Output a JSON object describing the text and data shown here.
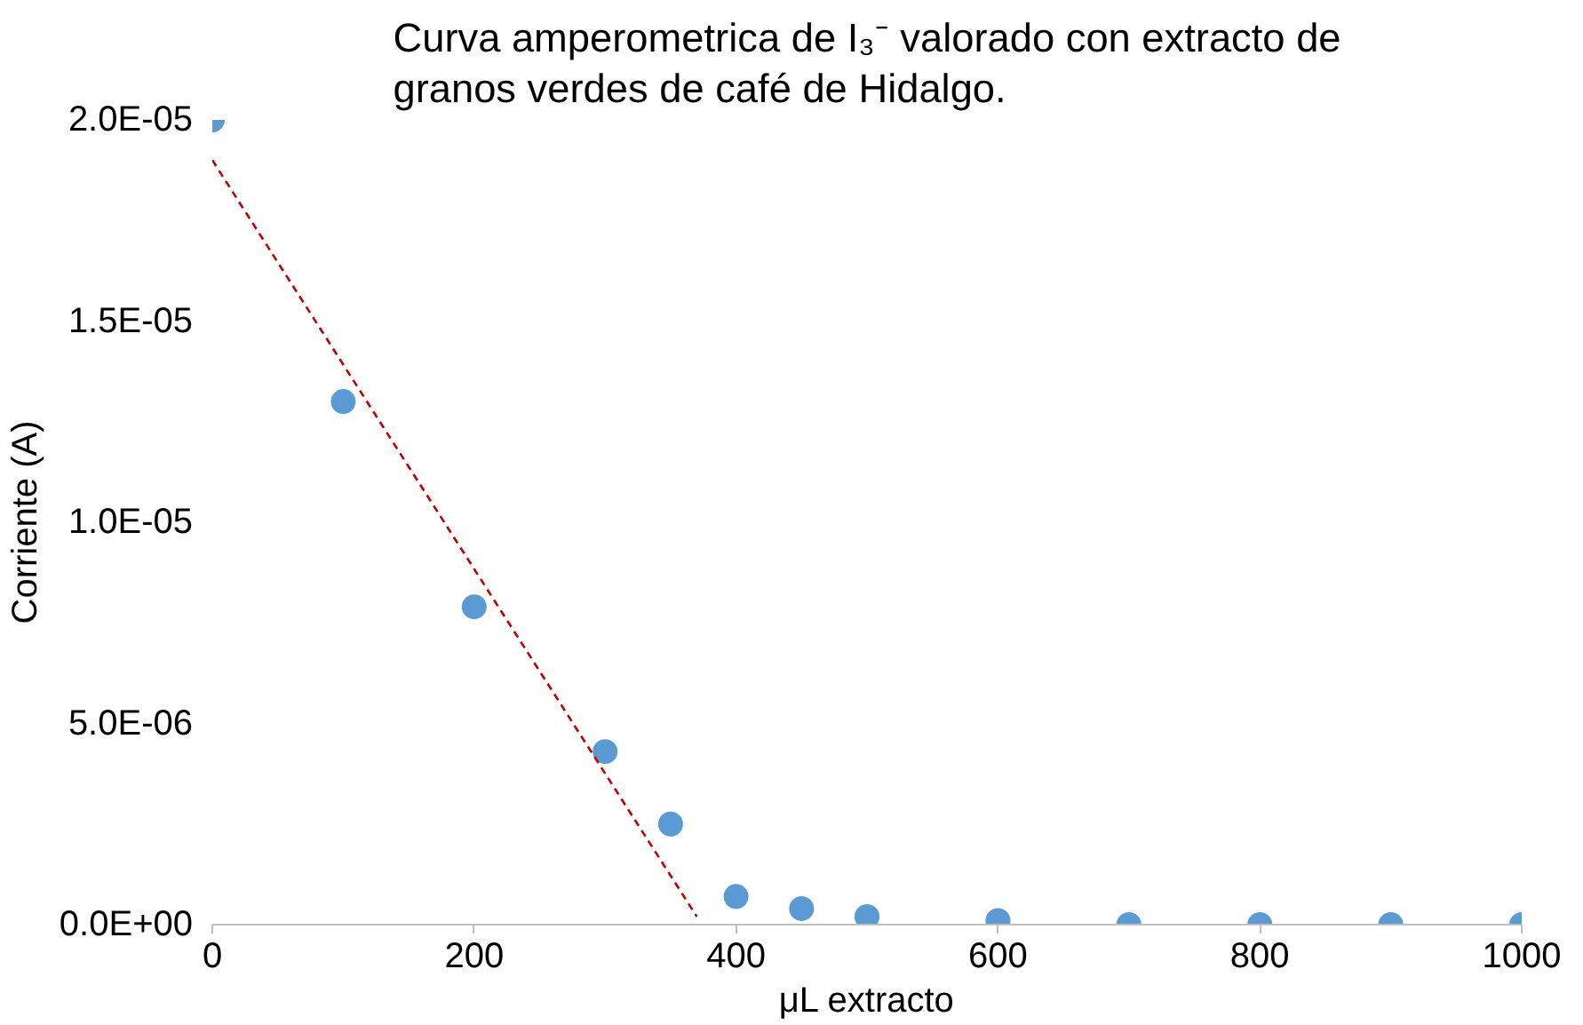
{
  "chart_data": {
    "type": "scatter",
    "title": "Curva amperometrica de I₃⁻ valorado con extracto de granos verdes de café de Hidalgo.",
    "xlabel": "μL extracto",
    "ylabel": "Corriente (A)",
    "xlim": [
      0,
      1000
    ],
    "xticks": [
      0,
      200,
      400,
      600,
      800,
      1000
    ],
    "ylim": [
      0,
      2e-05
    ],
    "yticks": [
      {
        "value": 0,
        "label": "0.0E+00"
      },
      {
        "value": 5e-06,
        "label": "5.0E-06"
      },
      {
        "value": 1e-05,
        "label": "1.0E-05"
      },
      {
        "value": 1.5e-05,
        "label": "1.5E-05"
      },
      {
        "value": 2e-05,
        "label": "2.0E-05"
      }
    ],
    "grid": false,
    "series": [
      {
        "color": "#5b9bd5",
        "marker": "circle",
        "x": [
          0,
          100,
          200,
          300,
          350,
          400,
          450,
          500,
          600,
          700,
          800,
          900,
          1000
        ],
        "values": [
          2e-05,
          1.3e-05,
          7.9e-06,
          4.3e-06,
          2.5e-06,
          7e-07,
          4e-07,
          2e-07,
          1e-07,
          0.0,
          0.0,
          0.0,
          0.0
        ]
      },
      {
        "type": "line",
        "color": "#c00000",
        "line_style": "dashed",
        "marker": "none",
        "x": [
          0,
          370
        ],
        "values": [
          1.9e-05,
          2e-07
        ]
      }
    ]
  }
}
